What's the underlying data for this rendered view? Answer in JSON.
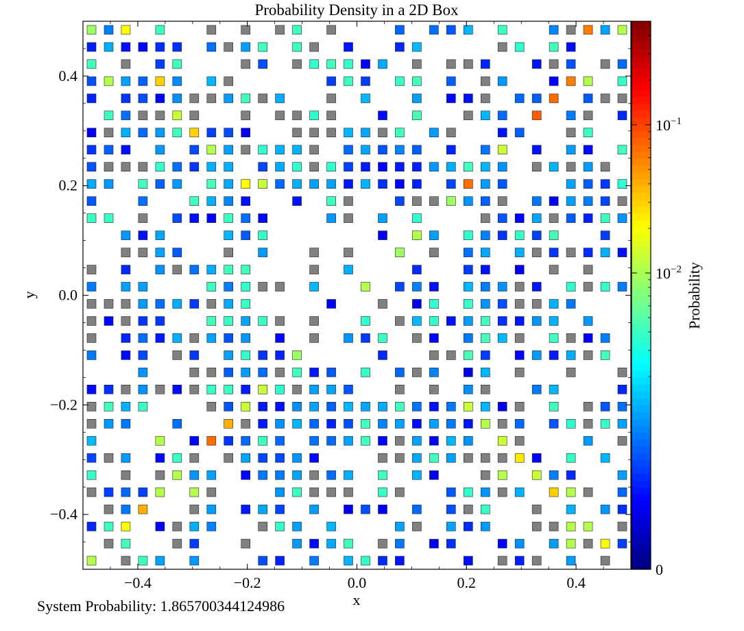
{
  "chart_data": {
    "type": "heatmap",
    "title": "Probability Density in a 2D Box",
    "xlabel": "x",
    "ylabel": "y",
    "xlim": [
      -0.5,
      0.5
    ],
    "ylim": [
      -0.5,
      0.5
    ],
    "grid_n": 32,
    "x_ticks": [
      -0.4,
      -0.2,
      0.0,
      0.2,
      0.4
    ],
    "x_tick_labels": [
      "−0.4",
      "−0.2",
      "0.0",
      "0.2",
      "0.4"
    ],
    "y_ticks": [
      -0.4,
      -0.2,
      0.0,
      0.2,
      0.4
    ],
    "y_tick_labels": [
      "−0.4",
      "−0.2",
      "0.0",
      "0.2",
      "0.4"
    ],
    "colorbar": {
      "label": "Probability",
      "scale": "symlog",
      "max": 0.5,
      "linthresh": 0.001,
      "ticks": [
        0,
        0.01,
        0.1
      ],
      "tick_base": [
        "0",
        "10",
        "10"
      ],
      "tick_exp": [
        "",
        "−2",
        "−1"
      ],
      "colormap": "jet"
    },
    "grid": false,
    "highlighted_cells": [
      {
        "x": -0.475,
        "y": 0.475,
        "v": 0.009
      },
      {
        "x": -0.425,
        "y": 0.475,
        "v": 0.02
      },
      {
        "x": 0.475,
        "y": 0.475,
        "v": 0.011
      },
      {
        "x": 0.425,
        "y": 0.475,
        "v": 0.06
      },
      {
        "x": -0.375,
        "y": 0.375,
        "v": 0.03
      },
      {
        "x": -0.45,
        "y": 0.4,
        "v": 0.011
      },
      {
        "x": 0.4,
        "y": 0.4,
        "v": 0.06
      },
      {
        "x": 0.35,
        "y": 0.35,
        "v": 0.07
      },
      {
        "x": 0.425,
        "y": 0.375,
        "v": 0.011
      },
      {
        "x": -0.325,
        "y": 0.325,
        "v": 0.013
      },
      {
        "x": -0.3,
        "y": 0.3,
        "v": 0.03
      },
      {
        "x": 0.325,
        "y": 0.325,
        "v": 0.08
      },
      {
        "x": -0.275,
        "y": 0.275,
        "v": 0.011
      },
      {
        "x": 0.275,
        "y": 0.275,
        "v": 0.013
      },
      {
        "x": 0.25,
        "y": 0.25,
        "v": 0.013
      },
      {
        "x": -0.2,
        "y": 0.2,
        "v": 0.02
      },
      {
        "x": -0.175,
        "y": 0.2,
        "v": 0.013
      },
      {
        "x": 0.2,
        "y": 0.2,
        "v": 0.07
      },
      {
        "x": 0.175,
        "y": 0.175,
        "v": 0.009
      },
      {
        "x": 0.1,
        "y": 0.1,
        "v": 0.011
      },
      {
        "x": 0.075,
        "y": 0.075,
        "v": 0.009
      },
      {
        "x": 0.0,
        "y": 0.0,
        "v": 0.025
      },
      {
        "x": 0.025,
        "y": 0.025,
        "v": 0.011
      },
      {
        "x": -0.1,
        "y": -0.1,
        "v": 0.011
      },
      {
        "x": -0.125,
        "y": -0.125,
        "v": 0.009
      },
      {
        "x": -0.175,
        "y": -0.175,
        "v": 0.013
      },
      {
        "x": -0.2,
        "y": -0.2,
        "v": 0.013
      },
      {
        "x": -0.225,
        "y": -0.225,
        "v": 0.04
      },
      {
        "x": 0.2,
        "y": -0.2,
        "v": 0.013
      },
      {
        "x": 0.225,
        "y": -0.225,
        "v": 0.011
      },
      {
        "x": 0.25,
        "y": -0.275,
        "v": 0.011
      },
      {
        "x": 0.275,
        "y": -0.275,
        "v": 0.013
      },
      {
        "x": -0.275,
        "y": -0.275,
        "v": 0.07
      },
      {
        "x": -0.325,
        "y": -0.325,
        "v": 0.011
      },
      {
        "x": 0.3,
        "y": -0.3,
        "v": 0.025
      },
      {
        "x": 0.325,
        "y": -0.325,
        "v": 0.013
      },
      {
        "x": 0.25,
        "y": -0.325,
        "v": 0.011
      },
      {
        "x": -0.35,
        "y": -0.35,
        "v": 0.03
      },
      {
        "x": 0.35,
        "y": -0.35,
        "v": 0.03
      },
      {
        "x": -0.375,
        "y": -0.375,
        "v": 0.011
      },
      {
        "x": -0.4,
        "y": -0.4,
        "v": 0.04
      },
      {
        "x": 0.375,
        "y": -0.375,
        "v": 0.011
      },
      {
        "x": 0.425,
        "y": -0.425,
        "v": 0.011
      },
      {
        "x": -0.425,
        "y": -0.425,
        "v": 0.02
      },
      {
        "x": 0.45,
        "y": -0.45,
        "v": 0.02
      },
      {
        "x": 0.375,
        "y": -0.45,
        "v": 0.011
      },
      {
        "x": -0.475,
        "y": -0.475,
        "v": 0.011
      },
      {
        "x": 0.4,
        "y": -0.425,
        "v": 0.011
      },
      {
        "x": -0.3,
        "y": -0.35,
        "v": 0.011
      },
      {
        "x": -0.35,
        "y": -0.275,
        "v": 0.011
      }
    ]
  },
  "footer": {
    "system_probability_text": "System Probability: 1.865700344124986"
  }
}
